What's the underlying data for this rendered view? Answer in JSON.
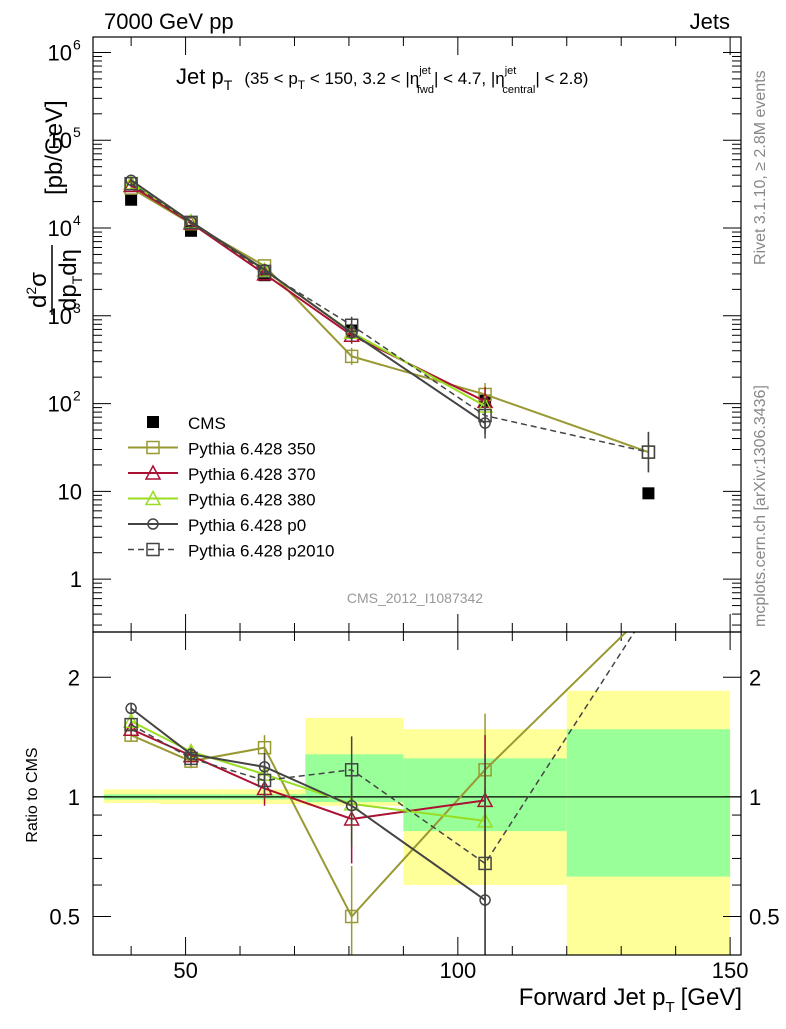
{
  "header": {
    "left": "7000 GeV pp",
    "right": "Jets"
  },
  "side": {
    "rivet": "Rivet 3.1.10, ≥ 2.8M events",
    "mcplots": "mcplots.cern.ch [arXiv:1306.3436]"
  },
  "chart_data": [
    {
      "type": "line",
      "panel": "main",
      "title": "Jet pT (35 < pT < 150, 3.2 < |ηjet fwd| < 4.7, |ηjet central| < 2.8)",
      "title_parts": {
        "main": "Jet p",
        "sub": "T",
        "rest": "(35 < p",
        "mid1": " < 150, 3.2 < |η",
        "mid2": "| < 4.7, |η",
        "end": "| < 2.8)",
        "fwd": "fwd",
        "central": "central",
        "jet": "jet"
      },
      "ylabel": "d²σ / dpT dη [pb/GeV]",
      "ylabel_parts": {
        "num": "d",
        "num2": "σ",
        "sup": "2",
        "den": "dp",
        "den_sub": "T",
        "den2": "dη",
        "unit": "[pb/GeV]"
      },
      "yscale": "log",
      "ylim": [
        0.25,
        1500000
      ],
      "xlim": [
        33,
        152
      ],
      "y_ticks": [
        {
          "value": 1,
          "label": "1"
        },
        {
          "value": 10,
          "label": "10"
        },
        {
          "value": 100,
          "label": "10",
          "exp": "2"
        },
        {
          "value": 1000,
          "label": "10",
          "exp": "3"
        },
        {
          "value": 10000,
          "label": "10",
          "exp": "4"
        },
        {
          "value": 100000,
          "label": "10",
          "exp": "5"
        },
        {
          "value": 1000000,
          "label": "10",
          "exp": "6"
        }
      ],
      "watermark": "CMS_2012_I1087342",
      "legend_position": "bottom-left",
      "series": [
        {
          "name": "CMS",
          "color": "#000000",
          "marker": "filled-square",
          "line": "none",
          "x": [
            40,
            51,
            64.5,
            80.5,
            105,
            135
          ],
          "y": [
            21000,
            9300,
            2900,
            680,
            108,
            9.5
          ]
        },
        {
          "name": "Pythia 6.428 350",
          "color": "#999933",
          "marker": "open-square",
          "line": "solid",
          "x": [
            40,
            51,
            64.5,
            80.5,
            105,
            135
          ],
          "y": [
            28500,
            11200,
            3700,
            345,
            127,
            28
          ],
          "err": [
            0.04,
            0.04,
            0.08,
            0.25,
            0.35,
            0.7
          ]
        },
        {
          "name": "Pythia 6.428 370",
          "color": "#aa1133",
          "marker": "open-triangle",
          "line": "solid",
          "x": [
            40,
            51,
            64.5,
            80.5,
            105
          ],
          "y": [
            30500,
            11400,
            3000,
            600,
            106
          ],
          "err": [
            0.04,
            0.04,
            0.08,
            0.25,
            0.45
          ]
        },
        {
          "name": "Pythia 6.428 380",
          "color": "#99dd22",
          "marker": "open-triangle",
          "line": "solid",
          "x": [
            40,
            51,
            64.5,
            80.5,
            105
          ],
          "y": [
            32500,
            11800,
            3300,
            650,
            94
          ],
          "err": [
            0.04,
            0.04,
            0.08,
            0.25,
            0.3
          ]
        },
        {
          "name": "Pythia 6.428 p0",
          "color": "#444444",
          "marker": "open-circle",
          "line": "solid",
          "x": [
            40,
            51,
            64.5,
            80.5,
            105
          ],
          "y": [
            35000,
            11800,
            3350,
            640,
            60
          ],
          "err": [
            0.04,
            0.04,
            0.08,
            0.25,
            0.5
          ]
        },
        {
          "name": "Pythia 6.428 p2010",
          "color": "#444444",
          "marker": "open-square",
          "line": "dashed",
          "x": [
            40,
            51,
            64.5,
            80.5,
            105,
            135
          ],
          "y": [
            32000,
            11600,
            3200,
            780,
            73,
            28
          ],
          "err": [
            0.04,
            0.04,
            0.08,
            0.25,
            0.6,
            0.7
          ]
        }
      ]
    },
    {
      "type": "line",
      "panel": "ratio",
      "ylabel": "Ratio to CMS",
      "yscale": "log",
      "ylim": [
        0.4,
        2.6
      ],
      "xlim": [
        33,
        152
      ],
      "xlabel": "Forward Jet pT [GeV]",
      "xlabel_parts": {
        "main": "Forward Jet p",
        "sub": "T",
        "unit": "[GeV]"
      },
      "x_ticks": [
        50,
        100,
        150
      ],
      "y_ticks": [
        {
          "value": 0.5,
          "label": "0.5"
        },
        {
          "value": 1,
          "label": "1"
        },
        {
          "value": 2,
          "label": "2"
        }
      ],
      "bands": [
        {
          "x": [
            35,
            45
          ],
          "stat": [
            0.985,
            1.015
          ],
          "total": [
            0.965,
            1.045
          ]
        },
        {
          "x": [
            45,
            57
          ],
          "stat": [
            0.985,
            1.015
          ],
          "total": [
            0.96,
            1.045
          ]
        },
        {
          "x": [
            57,
            72
          ],
          "stat": [
            0.985,
            1.015
          ],
          "total": [
            0.96,
            1.045
          ]
        },
        {
          "x": [
            72,
            90
          ],
          "stat": [
            0.97,
            1.28
          ],
          "total": [
            0.95,
            1.58
          ]
        },
        {
          "x": [
            90,
            120
          ],
          "stat": [
            0.82,
            1.25
          ],
          "total": [
            0.6,
            1.48
          ]
        },
        {
          "x": [
            120,
            150
          ],
          "stat": [
            0.63,
            1.48
          ],
          "total": [
            0.38,
            1.85
          ]
        }
      ],
      "series": [
        {
          "name": "Pythia 6.428 350",
          "color": "#999933",
          "marker": "open-square",
          "line": "solid",
          "x": [
            40,
            51,
            64.5,
            80.5,
            105,
            135
          ],
          "y": [
            1.43,
            1.23,
            1.33,
            0.5,
            1.17,
            2.95
          ],
          "err_lo": [
            0.05,
            0.05,
            0.1,
            0.17,
            0.35,
            0.0
          ],
          "err_hi": [
            0.05,
            0.05,
            0.1,
            0.17,
            0.45,
            0.0
          ]
        },
        {
          "name": "Pythia 6.428 370",
          "color": "#aa1133",
          "marker": "open-triangle",
          "line": "solid",
          "x": [
            40,
            51,
            64.5,
            80.5,
            105
          ],
          "y": [
            1.48,
            1.27,
            1.05,
            0.88,
            0.98
          ],
          "err_lo": [
            0.05,
            0.05,
            0.1,
            0.2,
            0.45
          ],
          "err_hi": [
            0.05,
            0.05,
            0.1,
            0.2,
            0.45
          ]
        },
        {
          "name": "Pythia 6.428 380",
          "color": "#99dd22",
          "marker": "open-triangle",
          "line": "solid",
          "x": [
            40,
            51,
            64.5,
            80.5,
            105
          ],
          "y": [
            1.55,
            1.3,
            1.14,
            0.96,
            0.87
          ],
          "err_lo": [
            0.05,
            0.05,
            0.1,
            0.2,
            0.3
          ],
          "err_hi": [
            0.05,
            0.05,
            0.1,
            0.2,
            0.3
          ]
        },
        {
          "name": "Pythia 6.428 p0",
          "color": "#444444",
          "marker": "open-circle",
          "line": "solid",
          "x": [
            40,
            51,
            64.5,
            80.5,
            105
          ],
          "y": [
            1.67,
            1.28,
            1.19,
            0.95,
            0.55
          ],
          "err_lo": [
            0.05,
            0.05,
            0.1,
            0.2,
            0.5
          ],
          "err_hi": [
            0.05,
            0.05,
            0.1,
            0.2,
            0.5
          ]
        },
        {
          "name": "Pythia 6.428 p2010",
          "color": "#444444",
          "marker": "open-square",
          "line": "dashed",
          "x": [
            40,
            51,
            64.5,
            80.5,
            105,
            135
          ],
          "y": [
            1.52,
            1.25,
            1.1,
            1.17,
            0.68,
            2.95
          ],
          "err_lo": [
            0.05,
            0.05,
            0.1,
            0.25,
            0.6,
            0.0
          ],
          "err_hi": [
            0.05,
            0.05,
            0.1,
            0.25,
            0.6,
            0.0
          ]
        }
      ],
      "band_colors": {
        "total": "#ffff99",
        "stat": "#99ff99"
      }
    }
  ]
}
